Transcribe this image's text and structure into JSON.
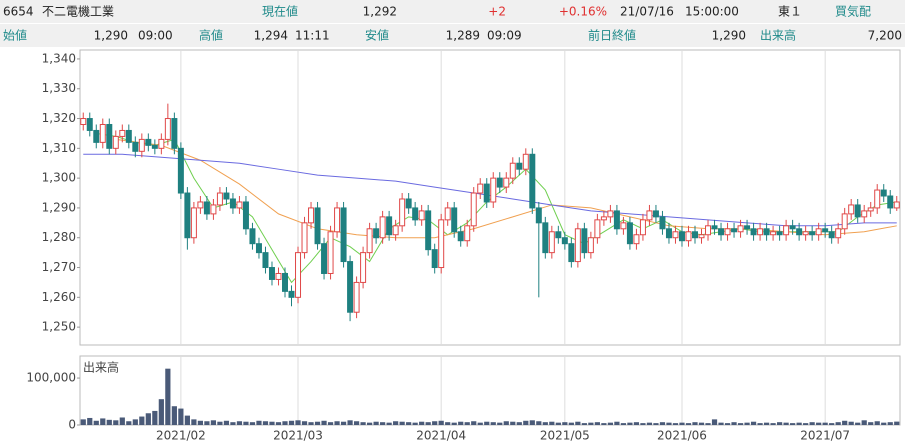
{
  "quote": {
    "code": "6654",
    "name": "不二電機工業",
    "price_label": "現在値",
    "price": "1,292",
    "change": "+2",
    "change_pct": "+0.16%",
    "date": "21/07/16",
    "time": "15:00:00",
    "market": "東１",
    "bid_label": "買気配",
    "open_label": "始値",
    "open": "1,290",
    "open_time": "09:00",
    "high_label": "高値",
    "high": "1,294",
    "high_time": "11:11",
    "low_label": "安値",
    "low": "1,289",
    "low_time": "09:09",
    "prev_label": "前日終値",
    "prev": "1,290",
    "volume_label": "出来高",
    "volume": "7,200"
  },
  "chart_data": [
    {
      "type": "candlestick",
      "up_color": "#e04848",
      "down_color": "#1f8080",
      "open": [
        1318,
        1320,
        1316,
        1312,
        1318,
        1310,
        1314,
        1316,
        1312,
        1309,
        1313,
        1311,
        1310,
        1313,
        1320,
        1310,
        1295,
        1280,
        1290,
        1292,
        1288,
        1291,
        1295,
        1293,
        1290,
        1292,
        1283,
        1278,
        1275,
        1270,
        1266,
        1268,
        1262,
        1260,
        1275,
        1285,
        1290,
        1278,
        1268,
        1282,
        1290,
        1272,
        1255,
        1265,
        1275,
        1283,
        1280,
        1287,
        1281,
        1284,
        1293,
        1290,
        1286,
        1289,
        1276,
        1270,
        1286,
        1290,
        1282,
        1279,
        1284,
        1295,
        1298,
        1292,
        1300,
        1297,
        1300,
        1305,
        1303,
        1308,
        1290,
        1285,
        1275,
        1282,
        1280,
        1278,
        1272,
        1283,
        1275,
        1280,
        1286,
        1287,
        1289,
        1283,
        1285,
        1278,
        1281,
        1286,
        1289,
        1287,
        1283,
        1280,
        1282,
        1279,
        1282,
        1280,
        1281,
        1284,
        1283,
        1281,
        1283,
        1282,
        1284,
        1283,
        1281,
        1283,
        1281,
        1282,
        1281,
        1284,
        1283,
        1281,
        1282,
        1281,
        1283,
        1282,
        1280,
        1283,
        1288,
        1291,
        1287,
        1289,
        1290,
        1296,
        1294,
        1290
      ],
      "high": [
        1322,
        1322,
        1318,
        1320,
        1320,
        1316,
        1318,
        1318,
        1314,
        1315,
        1315,
        1313,
        1315,
        1325,
        1322,
        1312,
        1297,
        1292,
        1294,
        1294,
        1293,
        1297,
        1297,
        1295,
        1294,
        1294,
        1285,
        1280,
        1277,
        1272,
        1270,
        1270,
        1264,
        1277,
        1287,
        1292,
        1292,
        1280,
        1284,
        1292,
        1292,
        1274,
        1267,
        1277,
        1285,
        1285,
        1289,
        1289,
        1286,
        1295,
        1295,
        1292,
        1291,
        1291,
        1278,
        1288,
        1292,
        1292,
        1284,
        1286,
        1297,
        1300,
        1300,
        1302,
        1302,
        1302,
        1307,
        1307,
        1310,
        1310,
        1292,
        1287,
        1284,
        1284,
        1282,
        1280,
        1285,
        1285,
        1282,
        1288,
        1289,
        1291,
        1291,
        1287,
        1287,
        1283,
        1288,
        1291,
        1291,
        1289,
        1285,
        1284,
        1284,
        1284,
        1284,
        1283,
        1286,
        1286,
        1285,
        1285,
        1285,
        1286,
        1286,
        1285,
        1285,
        1285,
        1284,
        1284,
        1286,
        1286,
        1285,
        1284,
        1284,
        1285,
        1285,
        1284,
        1285,
        1290,
        1293,
        1293,
        1291,
        1292,
        1298,
        1298,
        1296,
        1294
      ],
      "low": [
        1316,
        1314,
        1310,
        1310,
        1308,
        1308,
        1312,
        1310,
        1307,
        1307,
        1309,
        1308,
        1308,
        1311,
        1308,
        1293,
        1276,
        1278,
        1288,
        1286,
        1286,
        1289,
        1291,
        1288,
        1288,
        1281,
        1276,
        1273,
        1268,
        1264,
        1264,
        1260,
        1257,
        1258,
        1273,
        1283,
        1276,
        1266,
        1266,
        1280,
        1270,
        1252,
        1253,
        1263,
        1273,
        1278,
        1278,
        1279,
        1279,
        1282,
        1288,
        1284,
        1284,
        1274,
        1268,
        1268,
        1284,
        1280,
        1277,
        1277,
        1282,
        1293,
        1290,
        1290,
        1295,
        1295,
        1298,
        1301,
        1301,
        1288,
        1260,
        1273,
        1273,
        1278,
        1276,
        1270,
        1270,
        1273,
        1273,
        1278,
        1284,
        1285,
        1281,
        1281,
        1276,
        1276,
        1279,
        1284,
        1285,
        1281,
        1278,
        1278,
        1277,
        1277,
        1278,
        1278,
        1279,
        1281,
        1279,
        1279,
        1280,
        1280,
        1281,
        1279,
        1279,
        1279,
        1279,
        1279,
        1279,
        1281,
        1279,
        1279,
        1279,
        1279,
        1280,
        1278,
        1278,
        1281,
        1286,
        1285,
        1285,
        1287,
        1288,
        1292,
        1288,
        1289
      ],
      "close": [
        1320,
        1316,
        1312,
        1318,
        1310,
        1314,
        1316,
        1312,
        1309,
        1313,
        1311,
        1310,
        1313,
        1320,
        1310,
        1295,
        1280,
        1290,
        1292,
        1288,
        1291,
        1295,
        1293,
        1290,
        1292,
        1283,
        1278,
        1275,
        1270,
        1266,
        1268,
        1262,
        1260,
        1275,
        1285,
        1290,
        1278,
        1268,
        1282,
        1290,
        1272,
        1255,
        1265,
        1275,
        1283,
        1280,
        1287,
        1281,
        1284,
        1293,
        1290,
        1286,
        1289,
        1276,
        1270,
        1286,
        1290,
        1282,
        1279,
        1284,
        1295,
        1298,
        1292,
        1300,
        1297,
        1300,
        1305,
        1303,
        1308,
        1290,
        1285,
        1275,
        1282,
        1280,
        1278,
        1272,
        1283,
        1275,
        1280,
        1286,
        1287,
        1289,
        1283,
        1285,
        1278,
        1281,
        1286,
        1289,
        1287,
        1283,
        1280,
        1282,
        1279,
        1282,
        1280,
        1281,
        1284,
        1283,
        1281,
        1283,
        1282,
        1284,
        1283,
        1281,
        1283,
        1281,
        1282,
        1281,
        1284,
        1283,
        1281,
        1282,
        1281,
        1283,
        1282,
        1280,
        1283,
        1288,
        1291,
        1287,
        1289,
        1290,
        1296,
        1294,
        1290,
        1292
      ],
      "overlays": [
        {
          "color": "#6fcf4f",
          "x": [
            2,
            5,
            8,
            11,
            14,
            17,
            20,
            23,
            26,
            29,
            32,
            35,
            38,
            41,
            44,
            47,
            50,
            53,
            56,
            59,
            62,
            65,
            68,
            71,
            74,
            77,
            80,
            83,
            86,
            89,
            92,
            95,
            98,
            101,
            104,
            107,
            110,
            113,
            116,
            119,
            122,
            125
          ],
          "values": [
            1315,
            1314,
            1312,
            1311,
            1313,
            1300,
            1290,
            1292,
            1287,
            1276,
            1265,
            1272,
            1280,
            1277,
            1272,
            1283,
            1287,
            1286,
            1281,
            1285,
            1292,
            1297,
            1303,
            1296,
            1281,
            1278,
            1282,
            1286,
            1283,
            1286,
            1282,
            1281,
            1282,
            1283,
            1282,
            1282,
            1282,
            1282,
            1282,
            1287,
            1291,
            1292
          ]
        },
        {
          "color": "#f0a050",
          "x": [
            5,
            12,
            18,
            24,
            30,
            36,
            42,
            48,
            54,
            60,
            66,
            72,
            78,
            84,
            90,
            96,
            102,
            108,
            114,
            120,
            125
          ],
          "values": [
            1313,
            1311,
            1306,
            1298,
            1288,
            1283,
            1281,
            1280,
            1280,
            1283,
            1287,
            1291,
            1290,
            1287,
            1284,
            1283,
            1283,
            1282,
            1281,
            1282,
            1284
          ]
        },
        {
          "color": "#6a6ae0",
          "x": [
            0,
            6,
            12,
            18,
            24,
            30,
            36,
            42,
            48,
            54,
            60,
            66,
            72,
            78,
            84,
            90,
            96,
            102,
            108,
            114,
            120,
            125
          ],
          "values": [
            1308,
            1308,
            1307,
            1306,
            1305,
            1303,
            1301,
            1300,
            1299,
            1297,
            1295,
            1293,
            1291,
            1289,
            1288,
            1287,
            1286,
            1285,
            1284,
            1284,
            1285,
            1285
          ]
        }
      ],
      "xlim": [
        -0.5,
        125.5
      ],
      "xgrid": [
        15,
        33,
        55,
        74,
        92,
        114
      ],
      "ylim": [
        1244,
        1343
      ],
      "yticks": [
        {
          "value": 1250,
          "label": "1,250"
        },
        {
          "value": 1260,
          "label": "1,260"
        },
        {
          "value": 1270,
          "label": "1,270"
        },
        {
          "value": 1280,
          "label": "1,280"
        },
        {
          "value": 1290,
          "label": "1,290"
        },
        {
          "value": 1300,
          "label": "1,300"
        },
        {
          "value": 1310,
          "label": "1,310"
        },
        {
          "value": 1320,
          "label": "1,320"
        },
        {
          "value": 1330,
          "label": "1,330"
        },
        {
          "value": 1340,
          "label": "1,340"
        }
      ]
    },
    {
      "type": "bar",
      "title": "出来高",
      "color": "#4a5a78",
      "values": [
        12000,
        15000,
        9000,
        14000,
        11000,
        10000,
        16000,
        8000,
        12000,
        18000,
        25000,
        30000,
        55000,
        120000,
        40000,
        35000,
        20000,
        12000,
        9000,
        8000,
        10000,
        7000,
        9000,
        6000,
        8000,
        7000,
        6000,
        9000,
        8000,
        7000,
        6000,
        8000,
        9000,
        10000,
        8000,
        6000,
        7000,
        9000,
        6000,
        8000,
        7000,
        10000,
        8000,
        6000,
        5000,
        7000,
        6000,
        5000,
        8000,
        7000,
        6000,
        5000,
        7000,
        6000,
        8000,
        9000,
        6000,
        5000,
        7000,
        6000,
        8000,
        5000,
        7000,
        6000,
        5000,
        8000,
        7000,
        6000,
        9000,
        10000,
        8000,
        6000,
        7000,
        5000,
        6000,
        5000,
        7000,
        4000,
        5000,
        6000,
        4000,
        5000,
        7000,
        4000,
        5000,
        6000,
        4000,
        5000,
        4000,
        6000,
        5000,
        4000,
        5000,
        4000,
        6000,
        5000,
        4000,
        12000,
        5000,
        4000,
        6000,
        4000,
        5000,
        7000,
        4000,
        5000,
        4000,
        6000,
        5000,
        4000,
        5000,
        4000,
        6000,
        5000,
        5000,
        4000,
        6000,
        9000,
        7000,
        5000,
        10000,
        6000,
        8000,
        5000,
        6000,
        7200
      ],
      "xlim": [
        -0.5,
        125.5
      ],
      "xticks": [
        {
          "value": 15,
          "label": "2021/02"
        },
        {
          "value": 33,
          "label": "2021/03"
        },
        {
          "value": 55,
          "label": "2021/04"
        },
        {
          "value": 74,
          "label": "2021/05"
        },
        {
          "value": 92,
          "label": "2021/06"
        },
        {
          "value": 114,
          "label": "2021/07"
        }
      ],
      "ylim": [
        0,
        147000
      ],
      "yticks": [
        0,
        {
          "value": 100000,
          "label": "100,000"
        }
      ]
    }
  ]
}
